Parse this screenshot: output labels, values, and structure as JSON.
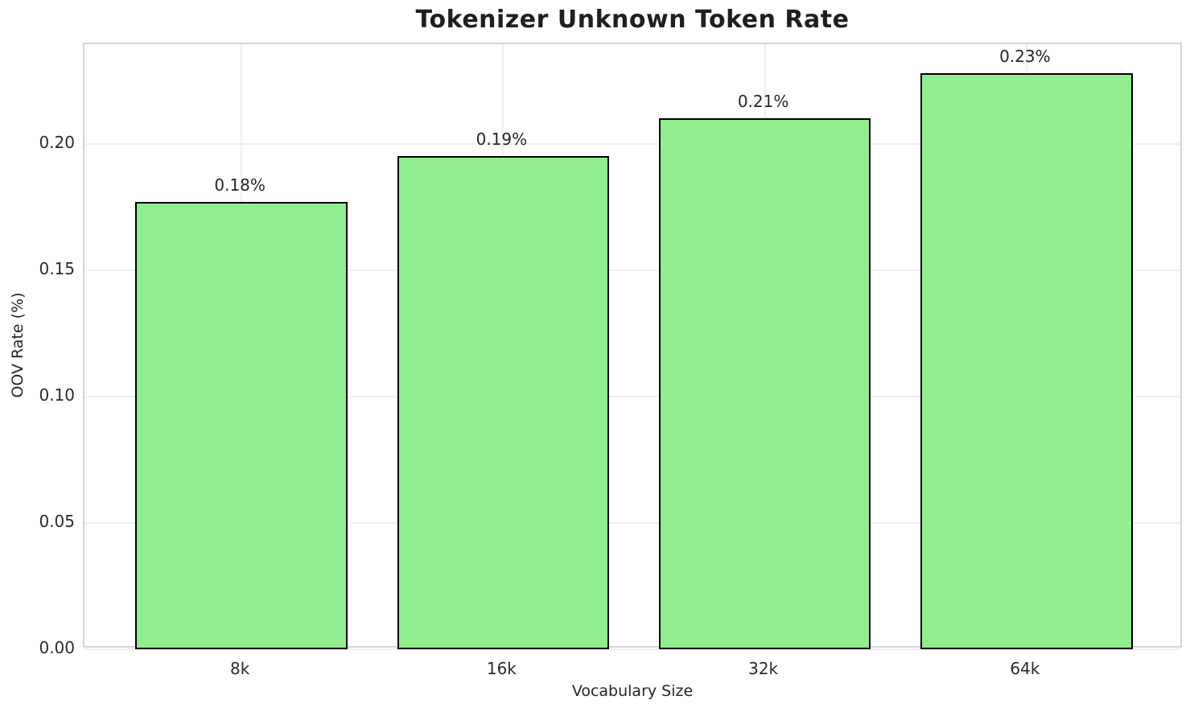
{
  "chart_data": {
    "type": "bar",
    "title": "Tokenizer Unknown Token Rate",
    "xlabel": "Vocabulary Size",
    "ylabel": "OOV Rate (%)",
    "categories": [
      "8k",
      "16k",
      "32k",
      "64k"
    ],
    "values": [
      0.177,
      0.195,
      0.21,
      0.228
    ],
    "bar_labels": [
      "0.18%",
      "0.19%",
      "0.21%",
      "0.23%"
    ],
    "ytick_values": [
      0.0,
      0.05,
      0.1,
      0.15,
      0.2
    ],
    "ytick_labels": [
      "0.00",
      "0.05",
      "0.10",
      "0.15",
      "0.20"
    ],
    "ylim": [
      0,
      0.2394
    ],
    "grid": true,
    "legend_position": "none",
    "bar_color": "#90EE90",
    "bar_edge_color": "#000000",
    "grid_color": "#efefef",
    "background_color": "#ffffff"
  }
}
